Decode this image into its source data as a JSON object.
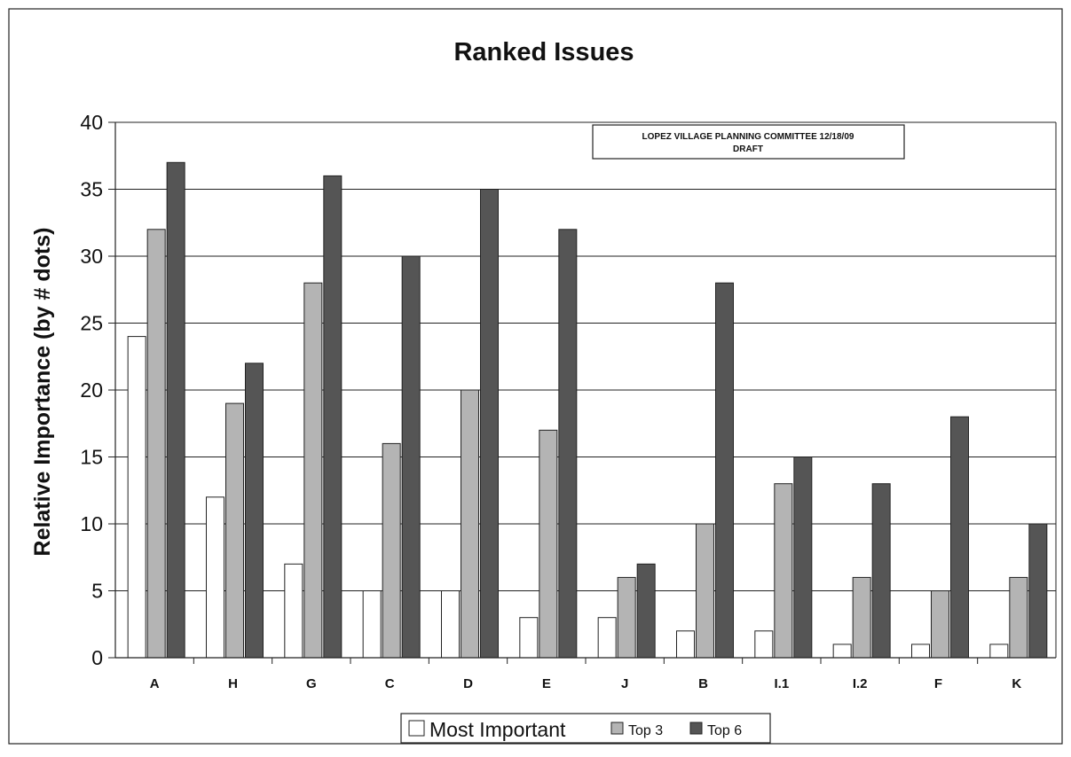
{
  "chart_data": {
    "type": "bar",
    "title": "Ranked Issues",
    "ylabel": "Relative Importance (by # dots)",
    "xlabel": "",
    "ylim": [
      0,
      40
    ],
    "yticks": [
      0,
      5,
      10,
      15,
      20,
      25,
      30,
      35,
      40
    ],
    "grid": true,
    "legend_position": "bottom",
    "annotation": {
      "line1": "LOPEZ VILLAGE PLANNING COMMITTEE  12/18/09",
      "line2": "DRAFT"
    },
    "categories": [
      "A",
      "H",
      "G",
      "C",
      "D",
      "E",
      "J",
      "B",
      "I.1",
      "I.2",
      "F",
      "K"
    ],
    "series": [
      {
        "name": "Most Important",
        "color": "#ffffff",
        "values": [
          24,
          12,
          7,
          5,
          5,
          3,
          3,
          2,
          2,
          1,
          1,
          1
        ]
      },
      {
        "name": "Top 3",
        "color": "#b4b4b4",
        "values": [
          32,
          19,
          28,
          16,
          20,
          17,
          6,
          10,
          13,
          6,
          5,
          6
        ]
      },
      {
        "name": "Top 6",
        "color": "#555555",
        "values": [
          37,
          22,
          36,
          30,
          35,
          32,
          7,
          28,
          15,
          13,
          18,
          10
        ]
      }
    ]
  }
}
